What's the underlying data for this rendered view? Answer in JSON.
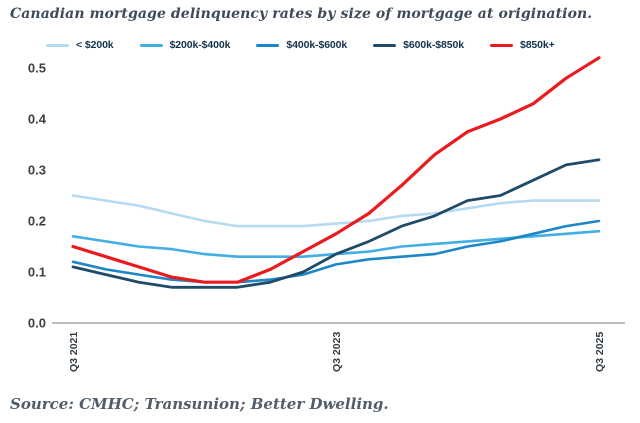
{
  "title": "Canadian mortgage delinquency rates by size of mortgage at origination.",
  "source": "Source: CMHC; Transunion; Better Dwelling.",
  "chart_data": {
    "type": "line",
    "title": "Canadian mortgage delinquency rates by size of mortgage at origination.",
    "xlabel": "",
    "ylabel": "",
    "ylim": [
      0.0,
      0.5
    ],
    "grid": false,
    "legend_position": "top",
    "y_tick_labels": [
      "0.0",
      "0.1",
      "0.2",
      "0.3",
      "0.4",
      "0.5"
    ],
    "y_ticks": [
      0.0,
      0.1,
      0.2,
      0.3,
      0.4,
      0.5
    ],
    "x_tick_labels": [
      "Q3 2021",
      "Q3 2023",
      "Q3 2025"
    ],
    "x_tick_indices": [
      0,
      8,
      16
    ],
    "categories": [
      "Q3 2021",
      "Q4 2021",
      "Q1 2022",
      "Q2 2022",
      "Q3 2022",
      "Q4 2022",
      "Q1 2023",
      "Q2 2023",
      "Q3 2023",
      "Q4 2023",
      "Q1 2024",
      "Q2 2024",
      "Q3 2024",
      "Q4 2024",
      "Q1 2025",
      "Q2 2025",
      "Q3 2025"
    ],
    "series": [
      {
        "name": "< $200k",
        "color": "#b5dbf2",
        "stroke_width": 2.6,
        "values": [
          0.25,
          0.24,
          0.23,
          0.215,
          0.2,
          0.19,
          0.19,
          0.19,
          0.195,
          0.2,
          0.21,
          0.215,
          0.225,
          0.235,
          0.24,
          0.24,
          0.24
        ]
      },
      {
        "name": "$200k-$400k",
        "color": "#41afe4",
        "stroke_width": 2.6,
        "values": [
          0.17,
          0.16,
          0.15,
          0.145,
          0.135,
          0.13,
          0.13,
          0.13,
          0.135,
          0.14,
          0.15,
          0.155,
          0.16,
          0.165,
          0.17,
          0.175,
          0.18
        ]
      },
      {
        "name": "$400k-$600k",
        "color": "#1e86c7",
        "stroke_width": 2.6,
        "values": [
          0.12,
          0.105,
          0.095,
          0.085,
          0.08,
          0.08,
          0.085,
          0.095,
          0.115,
          0.125,
          0.13,
          0.135,
          0.15,
          0.16,
          0.175,
          0.19,
          0.2
        ]
      },
      {
        "name": "$600k-$850k",
        "color": "#1f4b69",
        "stroke_width": 2.8,
        "values": [
          0.11,
          0.095,
          0.08,
          0.07,
          0.07,
          0.07,
          0.08,
          0.1,
          0.135,
          0.16,
          0.19,
          0.21,
          0.24,
          0.25,
          0.28,
          0.31,
          0.32
        ]
      },
      {
        "name": "$850k+",
        "color": "#ea1a1f",
        "stroke_width": 3.2,
        "values": [
          0.15,
          0.13,
          0.11,
          0.09,
          0.08,
          0.08,
          0.105,
          0.14,
          0.175,
          0.215,
          0.27,
          0.33,
          0.375,
          0.4,
          0.43,
          0.48,
          0.52
        ]
      }
    ]
  },
  "style": {
    "axis_line_color": "#a8a8a8",
    "y_tick_color": "#3f3f3f",
    "x_tick_color": "#323c46"
  }
}
